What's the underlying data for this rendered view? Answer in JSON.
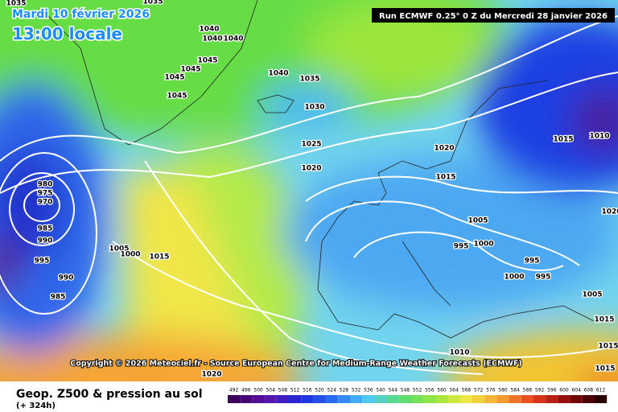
{
  "header": {
    "date": "Mardi 10 février 2026",
    "time": "13:00 locale",
    "run": "Run ECMWF 0.25° 0 Z du Mercredi 28 janvier 2026"
  },
  "copyright": "Copyright © 2026 Meteociel.fr - Source European Centre for Medium-Range Weather Forecasts (ECMWF)",
  "footer": {
    "title": "Geop. Z500 & pression au sol",
    "subtitle": "(+ 324h)"
  },
  "scale": [
    492,
    496,
    500,
    504,
    508,
    512,
    516,
    520,
    524,
    528,
    532,
    536,
    540,
    544,
    548,
    552,
    556,
    560,
    564,
    568,
    572,
    576,
    580,
    584,
    588,
    592,
    596,
    600,
    604,
    608,
    612
  ],
  "isobar_labels": [
    "1035",
    "1035",
    "1040",
    "1040",
    "1040",
    "1045",
    "1045",
    "1045",
    "1045",
    "1040",
    "1035",
    "1030",
    "1025",
    "1020",
    "1020",
    "1015",
    "1015",
    "1010",
    "1005",
    "1000",
    "995",
    "995",
    "1000",
    "995",
    "980",
    "975",
    "970",
    "985",
    "990",
    "995",
    "990",
    "985",
    "1005",
    "1000",
    "1015",
    "1020",
    "1005",
    "1015",
    "1010",
    "1020",
    "1015",
    "1015"
  ]
}
